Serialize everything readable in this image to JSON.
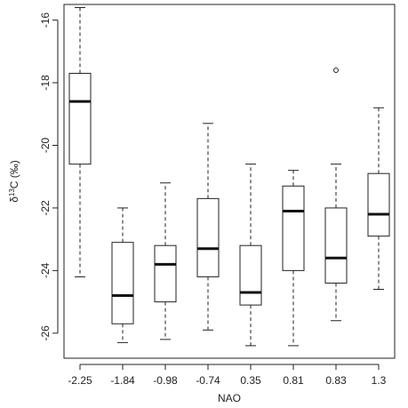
{
  "chart_data": {
    "type": "boxplot",
    "xlabel": "NAO",
    "ylabel": {
      "main": "δ",
      "sup": "13",
      "rest": "C (‰)"
    },
    "ylim": [
      -26.8,
      -15.5
    ],
    "yticks": [
      -26,
      -24,
      -22,
      -20,
      -18,
      -16
    ],
    "ytick_labels": [
      "-26",
      "-24",
      "-22",
      "-20",
      "-18",
      "-16"
    ],
    "categories": [
      "-2.25",
      "-1.84",
      "-0.98",
      "-0.74",
      "0.35",
      "0.81",
      "0.83",
      "1.3"
    ],
    "boxes": [
      {
        "whisker_low": -24.2,
        "q1": -20.6,
        "median": -18.6,
        "q3": -17.7,
        "whisker_high": -15.6,
        "outliers": []
      },
      {
        "whisker_low": -26.3,
        "q1": -25.7,
        "median": -24.8,
        "q3": -23.1,
        "whisker_high": -22.0,
        "outliers": []
      },
      {
        "whisker_low": -26.2,
        "q1": -25.0,
        "median": -23.8,
        "q3": -23.2,
        "whisker_high": -21.2,
        "outliers": []
      },
      {
        "whisker_low": -25.9,
        "q1": -24.2,
        "median": -23.3,
        "q3": -21.7,
        "whisker_high": -19.3,
        "outliers": []
      },
      {
        "whisker_low": -26.4,
        "q1": -25.1,
        "median": -24.7,
        "q3": -23.2,
        "whisker_high": -20.6,
        "outliers": []
      },
      {
        "whisker_low": -26.4,
        "q1": -24.0,
        "median": -22.1,
        "q3": -21.3,
        "whisker_high": -20.8,
        "outliers": []
      },
      {
        "whisker_low": -25.6,
        "q1": -24.4,
        "median": -23.6,
        "q3": -22.0,
        "whisker_high": -20.6,
        "outliers": [
          -17.6
        ]
      },
      {
        "whisker_low": -24.6,
        "q1": -22.9,
        "median": -22.2,
        "q3": -20.9,
        "whisker_high": -18.8,
        "outliers": []
      }
    ],
    "grid": false,
    "legend": "none"
  }
}
